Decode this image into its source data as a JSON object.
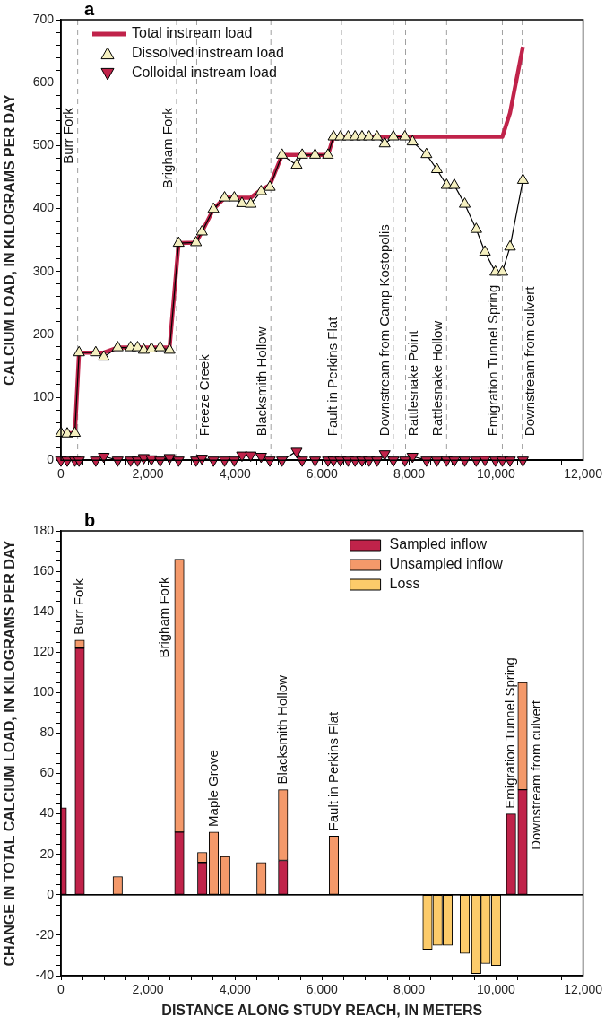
{
  "chart_data": [
    {
      "type": "line",
      "title": "a",
      "ylabel": "CALCIUM LOAD, IN KILOGRAMS PER DAY",
      "xlim": [
        0,
        12000
      ],
      "ylim": [
        0,
        700
      ],
      "xticks": [
        0,
        {
          "value": 500,
          "label": null
        },
        {
          "value": 1000,
          "label": null
        },
        {
          "value": 1500,
          "label": null
        },
        {
          "value": 2000,
          "label": "2,000"
        },
        {
          "value": 2500,
          "label": null
        },
        {
          "value": 3000,
          "label": null
        },
        {
          "value": 3500,
          "label": null
        },
        {
          "value": 4000,
          "label": "4,000"
        },
        {
          "value": 4500,
          "label": null
        },
        {
          "value": 5000,
          "label": null
        },
        {
          "value": 5500,
          "label": null
        },
        {
          "value": 6000,
          "label": "6,000"
        },
        {
          "value": 6500,
          "label": null
        },
        {
          "value": 7000,
          "label": null
        },
        {
          "value": 7500,
          "label": null
        },
        {
          "value": 8000,
          "label": "8,000"
        },
        {
          "value": 8500,
          "label": null
        },
        {
          "value": 9000,
          "label": null
        },
        {
          "value": 9500,
          "label": null
        },
        {
          "value": 10000,
          "label": "10,000"
        },
        {
          "value": 10500,
          "label": null
        },
        {
          "value": 11000,
          "label": null
        },
        {
          "value": 11500,
          "label": null
        },
        {
          "value": 12000,
          "label": "12,000"
        }
      ],
      "yticks": [
        0,
        {
          "value": 20,
          "label": null
        },
        {
          "value": 40,
          "label": null
        },
        {
          "value": 60,
          "label": null
        },
        {
          "value": 80,
          "label": null
        },
        100,
        {
          "value": 120,
          "label": null
        },
        {
          "value": 140,
          "label": null
        },
        {
          "value": 160,
          "label": null
        },
        {
          "value": 180,
          "label": null
        },
        200,
        {
          "value": 220,
          "label": null
        },
        {
          "value": 240,
          "label": null
        },
        {
          "value": 260,
          "label": null
        },
        {
          "value": 280,
          "label": null
        },
        300,
        {
          "value": 320,
          "label": null
        },
        {
          "value": 340,
          "label": null
        },
        {
          "value": 360,
          "label": null
        },
        {
          "value": 380,
          "label": null
        },
        400,
        {
          "value": 420,
          "label": null
        },
        {
          "value": 440,
          "label": null
        },
        {
          "value": 460,
          "label": null
        },
        {
          "value": 480,
          "label": null
        },
        500,
        {
          "value": 520,
          "label": null
        },
        {
          "value": 540,
          "label": null
        },
        {
          "value": 560,
          "label": null
        },
        {
          "value": 580,
          "label": null
        },
        600,
        {
          "value": 620,
          "label": null
        },
        {
          "value": 640,
          "label": null
        },
        {
          "value": 660,
          "label": null
        },
        {
          "value": 680,
          "label": null
        },
        700
      ],
      "x": [
        0,
        144,
        320,
        416,
        800,
        984,
        1304,
        1600,
        1760,
        1904,
        2080,
        2280,
        2496,
        2704,
        3104,
        3240,
        3504,
        3760,
        3984,
        4160,
        4360,
        4600,
        4800,
        5080,
        5416,
        5544,
        5840,
        6136,
        6264,
        6424,
        6600,
        6760,
        6920,
        7080,
        7264,
        7440,
        7640,
        7904,
        8080,
        8400,
        8640,
        8864,
        9040,
        9280,
        9544,
        9744,
        9984,
        10144,
        10320,
        10616
      ],
      "legend": "top left",
      "grid": false,
      "series": [
        {
          "name": "Total instream load",
          "color": "#c0234a",
          "marker": "none",
          "x": [
            0,
            144,
            320,
            416,
            800,
            984,
            1304,
            1600,
            1760,
            1904,
            2080,
            2280,
            2496,
            2704,
            3104,
            3240,
            3504,
            3760,
            3984,
            4160,
            4360,
            4600,
            4800,
            5080,
            5416,
            5544,
            5840,
            6136,
            6264,
            10144,
            10320,
            10616
          ],
          "values": [
            43,
            43,
            43,
            171,
            171,
            171,
            179,
            179,
            179,
            179,
            179,
            179,
            179,
            345,
            346,
            363,
            399,
            417,
            417,
            417,
            417,
            430,
            437,
            485,
            485,
            485,
            485,
            485,
            514,
            514,
            552,
            657
          ]
        },
        {
          "name": "Dissolved instream load",
          "color": "#f5f0c0",
          "marker": "triangle",
          "values": [
            43,
            42,
            43,
            171,
            171,
            164,
            179,
            179,
            179,
            175,
            177,
            179,
            175,
            345,
            346,
            363,
            399,
            417,
            417,
            408,
            407,
            427,
            434,
            485,
            469,
            485,
            485,
            485,
            514,
            514,
            514,
            514,
            514,
            514,
            514,
            503,
            514,
            514,
            506,
            486,
            462,
            437,
            437,
            407,
            367,
            331,
            299,
            299,
            339,
            445
          ]
        },
        {
          "name": "Colloidal instream load",
          "color": "#c0234a",
          "marker": "triangle-down",
          "values": [
            0,
            0,
            0,
            0,
            0,
            6,
            0,
            0,
            0,
            4,
            2,
            0,
            4,
            0,
            0,
            3,
            0,
            0,
            0,
            8,
            8,
            6,
            0,
            0,
            14,
            0,
            0,
            0,
            0,
            0,
            0,
            0,
            0,
            0,
            0,
            10,
            0,
            0,
            6,
            0,
            0,
            0,
            0,
            0,
            0,
            1,
            0,
            0,
            0,
            0
          ]
        }
      ],
      "ref_lines": [
        {
          "axis": "x",
          "value": 384,
          "label": "Burr Fork",
          "line_style": "dashed",
          "color": "#a0a0a0"
        },
        {
          "axis": "x",
          "value": 2656,
          "label": "Brigham Fork",
          "line_style": "dashed",
          "color": "#a0a0a0"
        },
        {
          "axis": "x",
          "value": 3120,
          "label": "Freeze Creek",
          "line_style": "dashed",
          "color": "#a0a0a0"
        },
        {
          "axis": "x",
          "value": 4824,
          "label": "Blacksmith Hollow",
          "line_style": "dashed",
          "color": "#a0a0a0"
        },
        {
          "axis": "x",
          "value": 6448,
          "label": "Fault in Perkins Flat",
          "line_style": "dashed",
          "color": "#a0a0a0"
        },
        {
          "axis": "x",
          "value": 7640,
          "label": "Downstream from Camp Kostopolis",
          "line_style": "dashed",
          "color": "#a0a0a0"
        },
        {
          "axis": "x",
          "value": 7920,
          "label": "Rattlesnake Point",
          "line_style": "dashed",
          "color": "#a0a0a0"
        },
        {
          "axis": "x",
          "value": 8864,
          "label": "Rattlesnake Hollow",
          "line_style": "dashed",
          "color": "#a0a0a0"
        },
        {
          "axis": "x",
          "value": 10144,
          "label": "Emigration Tunnel Spring",
          "line_style": "dashed",
          "color": "#a0a0a0"
        },
        {
          "axis": "x",
          "value": 10600,
          "label": "Downstream from culvert",
          "line_style": "dashed",
          "color": "#a0a0a0"
        }
      ]
    },
    {
      "type": "bar",
      "title": "b",
      "ylabel": "CHANGE IN TOTAL CALCIUM LOAD, IN KILOGRAMS PER DAY",
      "xlabel": "DISTANCE ALONG STUDY REACH, IN METERS",
      "xlim": [
        0,
        12000
      ],
      "ylim": [
        -40,
        180
      ],
      "xticks": [
        0,
        {
          "value": 500,
          "label": null
        },
        {
          "value": 1000,
          "label": null
        },
        {
          "value": 1500,
          "label": null
        },
        {
          "value": 2000,
          "label": "2,000"
        },
        {
          "value": 2500,
          "label": null
        },
        {
          "value": 3000,
          "label": null
        },
        {
          "value": 3500,
          "label": null
        },
        {
          "value": 4000,
          "label": "4,000"
        },
        {
          "value": 4500,
          "label": null
        },
        {
          "value": 5000,
          "label": null
        },
        {
          "value": 5500,
          "label": null
        },
        {
          "value": 6000,
          "label": "6,000"
        },
        {
          "value": 6500,
          "label": null
        },
        {
          "value": 7000,
          "label": null
        },
        {
          "value": 7500,
          "label": null
        },
        {
          "value": 8000,
          "label": "8,000"
        },
        {
          "value": 8500,
          "label": null
        },
        {
          "value": 9000,
          "label": null
        },
        {
          "value": 9500,
          "label": null
        },
        {
          "value": 10000,
          "label": "10,000"
        },
        {
          "value": 10500,
          "label": null
        },
        {
          "value": 11000,
          "label": null
        },
        {
          "value": 11500,
          "label": null
        },
        {
          "value": 12000,
          "label": "12,000"
        }
      ],
      "yticks": [
        -40,
        {
          "value": -35,
          "label": null
        },
        {
          "value": -30,
          "label": null
        },
        {
          "value": -25,
          "label": null
        },
        -20,
        {
          "value": -15,
          "label": null
        },
        {
          "value": -10,
          "label": null
        },
        {
          "value": -5,
          "label": null
        },
        0,
        {
          "value": 5,
          "label": null
        },
        {
          "value": 10,
          "label": null
        },
        {
          "value": 15,
          "label": null
        },
        20,
        {
          "value": 25,
          "label": null
        },
        {
          "value": 30,
          "label": null
        },
        {
          "value": 35,
          "label": null
        },
        40,
        {
          "value": 45,
          "label": null
        },
        {
          "value": 50,
          "label": null
        },
        {
          "value": 55,
          "label": null
        },
        60,
        {
          "value": 65,
          "label": null
        },
        {
          "value": 70,
          "label": null
        },
        {
          "value": 75,
          "label": null
        },
        80,
        {
          "value": 85,
          "label": null
        },
        {
          "value": 90,
          "label": null
        },
        {
          "value": 95,
          "label": null
        },
        100,
        {
          "value": 105,
          "label": null
        },
        {
          "value": 110,
          "label": null
        },
        {
          "value": 115,
          "label": null
        },
        120,
        {
          "value": 125,
          "label": null
        },
        {
          "value": 130,
          "label": null
        },
        {
          "value": 135,
          "label": null
        },
        140,
        {
          "value": 145,
          "label": null
        },
        {
          "value": 150,
          "label": null
        },
        {
          "value": 155,
          "label": null
        },
        160,
        {
          "value": 165,
          "label": null
        },
        {
          "value": 170,
          "label": null
        },
        {
          "value": 175,
          "label": null
        },
        180
      ],
      "stacked": true,
      "legend": "top right",
      "grid": false,
      "x": [
        20,
        432,
        1304,
        2720,
        3248,
        3512,
        3776,
        4608,
        5104,
        6272,
        8424,
        8656,
        8888,
        9280,
        9544,
        9760,
        10000,
        10344,
        10608
      ],
      "series": [
        {
          "name": "Sampled inflow",
          "color": "#c0234a",
          "values": [
            43,
            122,
            null,
            31,
            16,
            null,
            null,
            null,
            17,
            null,
            null,
            null,
            null,
            null,
            null,
            null,
            null,
            40,
            52
          ]
        },
        {
          "name": "Unsampled inflow",
          "color": "#f4996a",
          "values": [
            null,
            4,
            9,
            135,
            5,
            31,
            19,
            16,
            35,
            29,
            null,
            null,
            null,
            null,
            null,
            null,
            null,
            null,
            53
          ]
        },
        {
          "name": "Loss",
          "color": "#fccb6a",
          "values": [
            null,
            null,
            null,
            null,
            null,
            null,
            null,
            null,
            null,
            null,
            -27,
            -25,
            -25,
            -29,
            -39,
            -34,
            -35,
            null,
            null
          ]
        }
      ],
      "ref_lines": [
        {
          "axis": "y",
          "value": 0,
          "color": "#000000",
          "line_style": "solid"
        }
      ],
      "annotations": [
        {
          "text": "Burr Fork",
          "x": 432,
          "y": 126
        },
        {
          "text": "Brigham Fork",
          "x": 2720,
          "y": 166
        },
        {
          "text": "Maple Grove",
          "x": 3512,
          "y": 31
        },
        {
          "text": "Blacksmith Hollow",
          "x": 5104,
          "y": 52
        },
        {
          "text": "Fault in Perkins Flat",
          "x": 6272,
          "y": 29
        },
        {
          "text": "Emigration Tunnel Spring",
          "x": 10344,
          "y": 40
        },
        {
          "text": "Downstream from culvert",
          "x": 10608,
          "y": 105
        }
      ]
    }
  ]
}
